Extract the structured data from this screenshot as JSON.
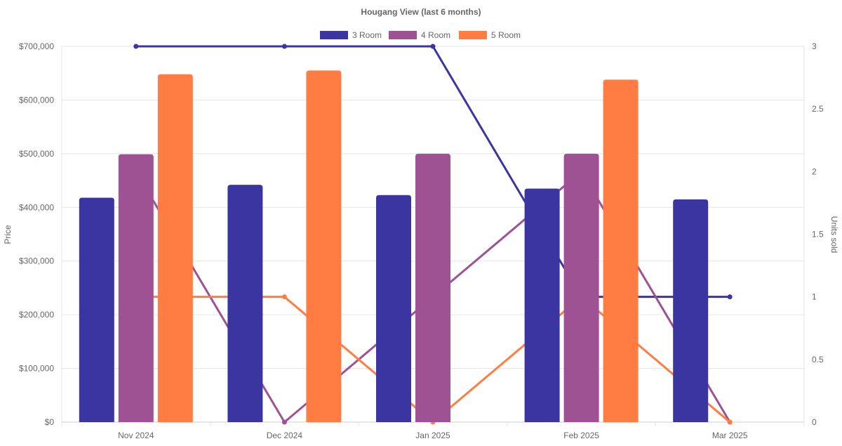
{
  "chart_data": {
    "type": "bar",
    "title": "Hougang View (last 6 months)",
    "categories": [
      "Nov 2024",
      "Dec 2024",
      "Jan 2025",
      "Feb 2025",
      "Mar 2025"
    ],
    "ylabel": "Price",
    "y2label": "Units sold",
    "ylim": [
      0,
      700000
    ],
    "y2lim": [
      0,
      3
    ],
    "yticks": [
      "$0",
      "$100,000",
      "$200,000",
      "$300,000",
      "$400,000",
      "$500,000",
      "$600,000",
      "$700,000"
    ],
    "y2ticks": [
      "0",
      "0.5",
      "1",
      "1.5",
      "2",
      "2.5",
      "3"
    ],
    "legend_position": "top",
    "grid": true,
    "series": [
      {
        "name": "3 Room",
        "color": "#3a35a0",
        "price": [
          418000,
          442000,
          423000,
          435000,
          415000
        ],
        "units": [
          3,
          3,
          3,
          1,
          1
        ]
      },
      {
        "name": "4 Room",
        "color": "#9e5193",
        "price": [
          499000,
          null,
          500000,
          500000,
          null
        ],
        "units": [
          2,
          0,
          1,
          2,
          0
        ]
      },
      {
        "name": "5 Room",
        "color": "#ff7d43",
        "price": [
          648000,
          655000,
          null,
          638000,
          null
        ],
        "units": [
          1,
          1,
          0,
          1,
          0
        ]
      }
    ]
  }
}
